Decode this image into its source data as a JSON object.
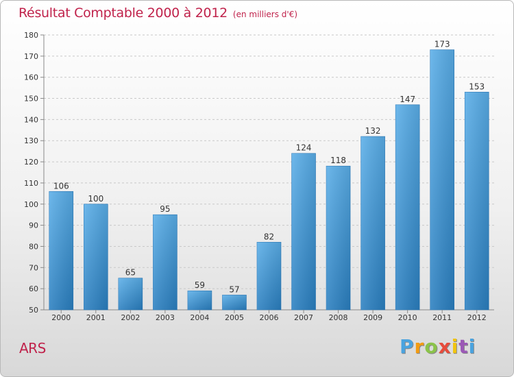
{
  "chart_data": {
    "type": "bar",
    "title": "Résultat Comptable 2000 à 2012",
    "subtitle": "(en milliers d'€)",
    "categories": [
      "2000",
      "2001",
      "2002",
      "2003",
      "2004",
      "2005",
      "2006",
      "2007",
      "2008",
      "2009",
      "2010",
      "2011",
      "2012"
    ],
    "values": [
      106,
      100,
      65,
      95,
      59,
      57,
      82,
      124,
      118,
      132,
      147,
      173,
      153
    ],
    "xlabel": "",
    "ylabel": "",
    "ylim": [
      50,
      180
    ],
    "yticks": [
      50,
      60,
      70,
      80,
      90,
      100,
      110,
      120,
      130,
      140,
      150,
      160,
      170,
      180
    ],
    "grid": true,
    "bar_color": "#3f93d6"
  },
  "footer": {
    "town": "ARS",
    "logo_letters": [
      "P",
      "r",
      "o",
      "x",
      "i",
      "t",
      "i"
    ],
    "logo_colors": [
      "#4aa3df",
      "#f39c12",
      "#8bc34a",
      "#e74c3c",
      "#f1c40f",
      "#9b59b6",
      "#4aa3df"
    ]
  }
}
